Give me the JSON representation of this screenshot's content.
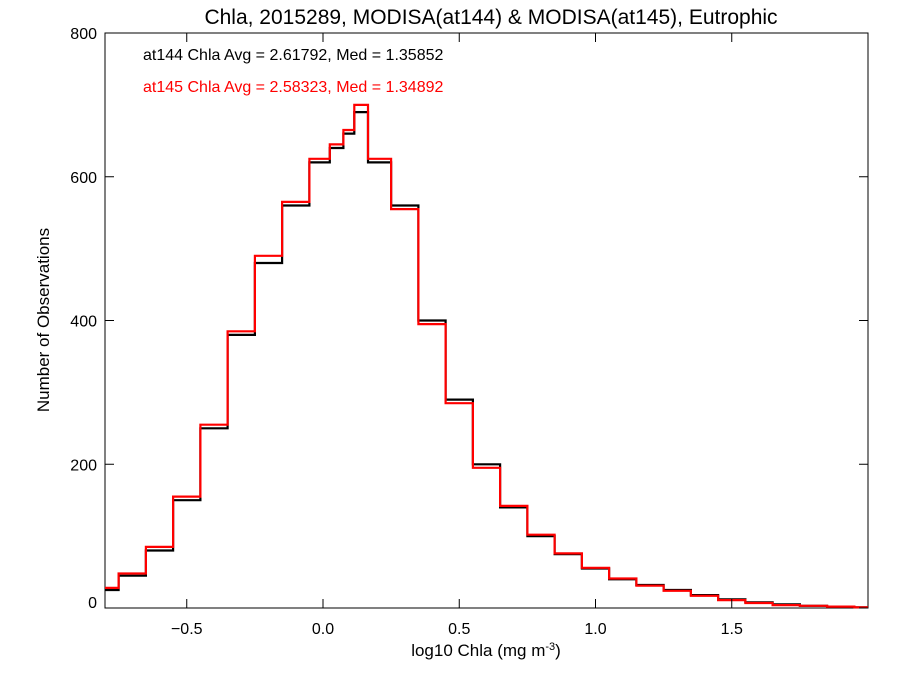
{
  "chart_data": {
    "type": "line",
    "title": "Chla, 2015289, MODISA(at144) & MODISA(at145), Eutrophic",
    "xlabel": "log10 Chla (mg m",
    "xlabel_sup": "-3",
    "xlabel_tail": ")",
    "ylabel": "Number of Observations",
    "xlim": [
      -0.8,
      2.0
    ],
    "ylim": [
      0,
      800
    ],
    "x_ticks": [
      -0.5,
      0.0,
      0.5,
      1.0,
      1.5
    ],
    "x_tick_labels": [
      "−0.5",
      "0.0",
      "0.5",
      "1.0",
      "1.5"
    ],
    "y_ticks": [
      0,
      200,
      400,
      600,
      800
    ],
    "y_tick_labels": [
      "0",
      "200",
      "400",
      "600",
      "800"
    ],
    "grid": false,
    "step": true,
    "annotations": [
      {
        "text": "at144 Chla Avg = 2.61792, Med = 1.35852",
        "color": "#000000"
      },
      {
        "text": "at145 Chla Avg = 2.58323, Med = 1.34892",
        "color": "#ff0000"
      }
    ],
    "x": [
      -0.8,
      -0.7,
      -0.6,
      -0.5,
      -0.4,
      -0.3,
      -0.2,
      -0.1,
      0.0,
      0.05,
      0.1,
      0.13,
      0.2,
      0.3,
      0.4,
      0.5,
      0.6,
      0.7,
      0.8,
      0.9,
      1.0,
      1.1,
      1.2,
      1.3,
      1.4,
      1.5,
      1.6,
      1.7,
      1.8,
      1.9,
      2.0
    ],
    "series": [
      {
        "color": "#000000",
        "values": [
          25,
          45,
          80,
          150,
          250,
          380,
          480,
          560,
          620,
          640,
          660,
          690,
          620,
          560,
          400,
          290,
          200,
          140,
          100,
          75,
          55,
          40,
          32,
          25,
          18,
          12,
          8,
          5,
          3,
          2,
          1
        ]
      },
      {
        "color": "#ff0000",
        "values": [
          28,
          48,
          85,
          155,
          255,
          385,
          490,
          565,
          625,
          645,
          665,
          700,
          625,
          555,
          395,
          285,
          195,
          142,
          102,
          76,
          56,
          41,
          31,
          24,
          17,
          11,
          7,
          4,
          3,
          2,
          1
        ]
      }
    ]
  }
}
